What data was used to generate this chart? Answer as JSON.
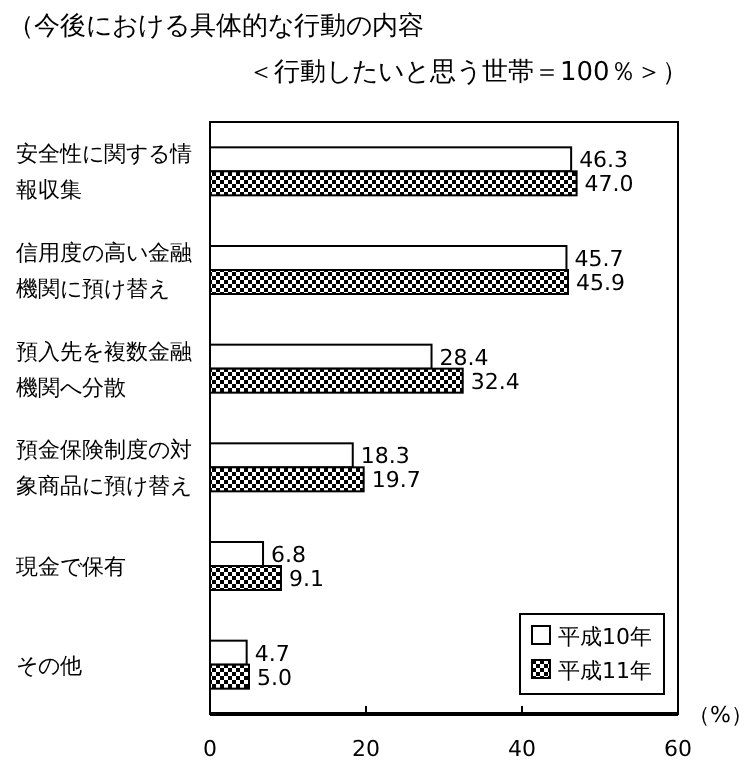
{
  "chart_data": {
    "type": "bar",
    "orientation": "horizontal",
    "title": "（今後における具体的な行動の内容",
    "subtitle": "＜行動したいと思う世帯＝100％＞）",
    "xlabel": "（%）",
    "categories": [
      "安全性に関する情報収集",
      "信用度の高い金融機関に預け替え",
      "預入先を複数金融機関へ分散",
      "預金保険制度の対象商品に預け替え",
      "現金で保有",
      "その他"
    ],
    "series": [
      {
        "name": "平成10年",
        "color": "#ffffff",
        "values": [
          46.3,
          45.7,
          28.4,
          18.3,
          6.8,
          4.7
        ],
        "value_labels": [
          "46.3",
          "45.7",
          "28.4",
          "18.3",
          "6.8",
          "4.7"
        ]
      },
      {
        "name": "平成11年",
        "color": "#000000",
        "values": [
          47.0,
          45.9,
          32.4,
          19.7,
          9.1,
          5.0
        ],
        "value_labels": [
          "47.0",
          "45.9",
          "32.4",
          "19.7",
          "9.1",
          "5.0"
        ]
      }
    ],
    "xlim": [
      0,
      60
    ],
    "xticks": [
      0,
      20,
      40,
      60
    ],
    "legend": "bottom right"
  }
}
